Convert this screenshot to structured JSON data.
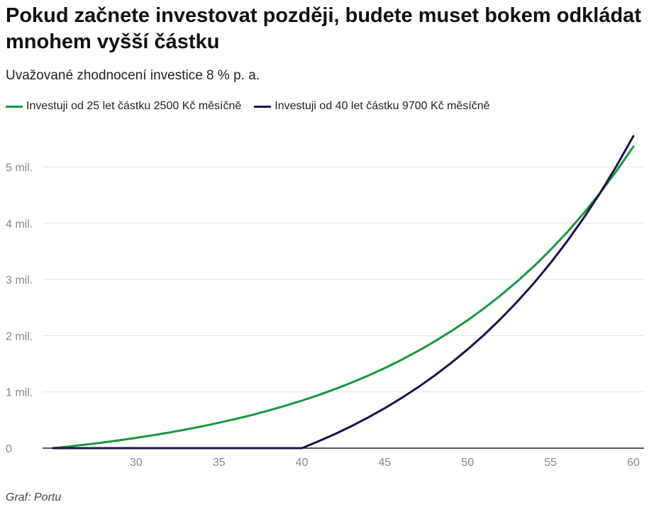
{
  "chart_data": {
    "type": "line",
    "title": "Pokud začnete investovat později, budete muset bokem odkládat mnohem vyšší částku",
    "subtitle": "Uvažované zhodnocení investice 8 % p. a.",
    "source": "Graf: Portu",
    "xlim": [
      25,
      60
    ],
    "ylim": [
      0,
      5700000
    ],
    "x_ticks": [
      30,
      35,
      40,
      45,
      50,
      55,
      60
    ],
    "y_ticks": [
      {
        "value": 0,
        "label": "0"
      },
      {
        "value": 1000000,
        "label": "1 mil."
      },
      {
        "value": 2000000,
        "label": "2 mil."
      },
      {
        "value": 3000000,
        "label": "3 mil."
      },
      {
        "value": 4000000,
        "label": "4 mil."
      },
      {
        "value": 5000000,
        "label": "5 mil."
      }
    ],
    "grid": true,
    "legend_position": "top-left",
    "series": [
      {
        "name": "Investuji od 25 let částku 2500 Kč měsíčně",
        "color": "#1a9641",
        "x": [
          25,
          26,
          27,
          28,
          29,
          30,
          31,
          32,
          33,
          34,
          35,
          36,
          37,
          38,
          39,
          40,
          41,
          42,
          43,
          44,
          45,
          46,
          47,
          48,
          49,
          50,
          51,
          52,
          53,
          54,
          55,
          56,
          57,
          58,
          59,
          60
        ],
        "values": [
          0,
          31125,
          64740,
          101045,
          140254,
          182598,
          228330,
          277720,
          331060,
          388668,
          450885,
          518080,
          590650,
          669025,
          753670,
          845090,
          943820,
          1050450,
          1165610,
          1289980,
          1424300,
          1569370,
          1726040,
          1895250,
          2077990,
          2275350,
          2488500,
          2718700,
          2967320,
          3235830,
          3525830,
          3839030,
          4177280,
          4542600,
          4937150,
          5363250
        ]
      },
      {
        "name": "Investuji od 40 let částku 9700 Kč měsíčně",
        "color": "#1f0f4a",
        "x": [
          25,
          26,
          27,
          28,
          29,
          30,
          31,
          32,
          33,
          34,
          35,
          36,
          37,
          38,
          39,
          40,
          41,
          42,
          43,
          44,
          45,
          46,
          47,
          48,
          49,
          50,
          51,
          52,
          53,
          54,
          55,
          56,
          57,
          58,
          59,
          60
        ],
        "values": [
          0,
          0,
          0,
          0,
          0,
          0,
          0,
          0,
          0,
          0,
          0,
          0,
          0,
          0,
          0,
          0,
          120770,
          251200,
          392680,
          545480,
          710510,
          888740,
          1081230,
          1289120,
          1513640,
          1756130,
          2018020,
          2300860,
          2606330,
          2936240,
          3292550,
          3677360,
          4092970,
          4541820,
          5026600,
          5550150
        ]
      }
    ]
  }
}
